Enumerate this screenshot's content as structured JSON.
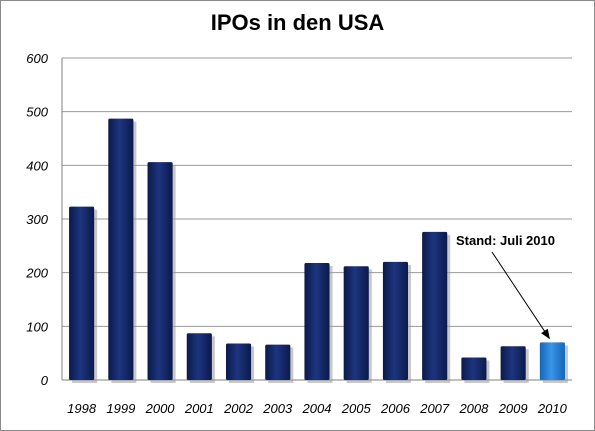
{
  "chart_data": {
    "type": "bar",
    "title": "IPOs in den USA",
    "xlabel": "",
    "ylabel": "",
    "ylim": [
      0,
      600
    ],
    "yticks": [
      0,
      100,
      200,
      300,
      400,
      500,
      600
    ],
    "grid": true,
    "legend": "none",
    "categories": [
      "1998",
      "1999",
      "2000",
      "2001",
      "2002",
      "2003",
      "2004",
      "2005",
      "2006",
      "2007",
      "2008",
      "2009",
      "2010"
    ],
    "values": [
      323,
      487,
      406,
      87,
      68,
      66,
      218,
      212,
      220,
      276,
      42,
      63,
      70
    ],
    "highlight_index": 12,
    "annotation": {
      "text": "Stand: Juli 2010",
      "target_index": 12
    },
    "colors": {
      "bar": "#152a6b",
      "highlight": "#2a7fd4",
      "grid": "#9a9a9a"
    }
  }
}
